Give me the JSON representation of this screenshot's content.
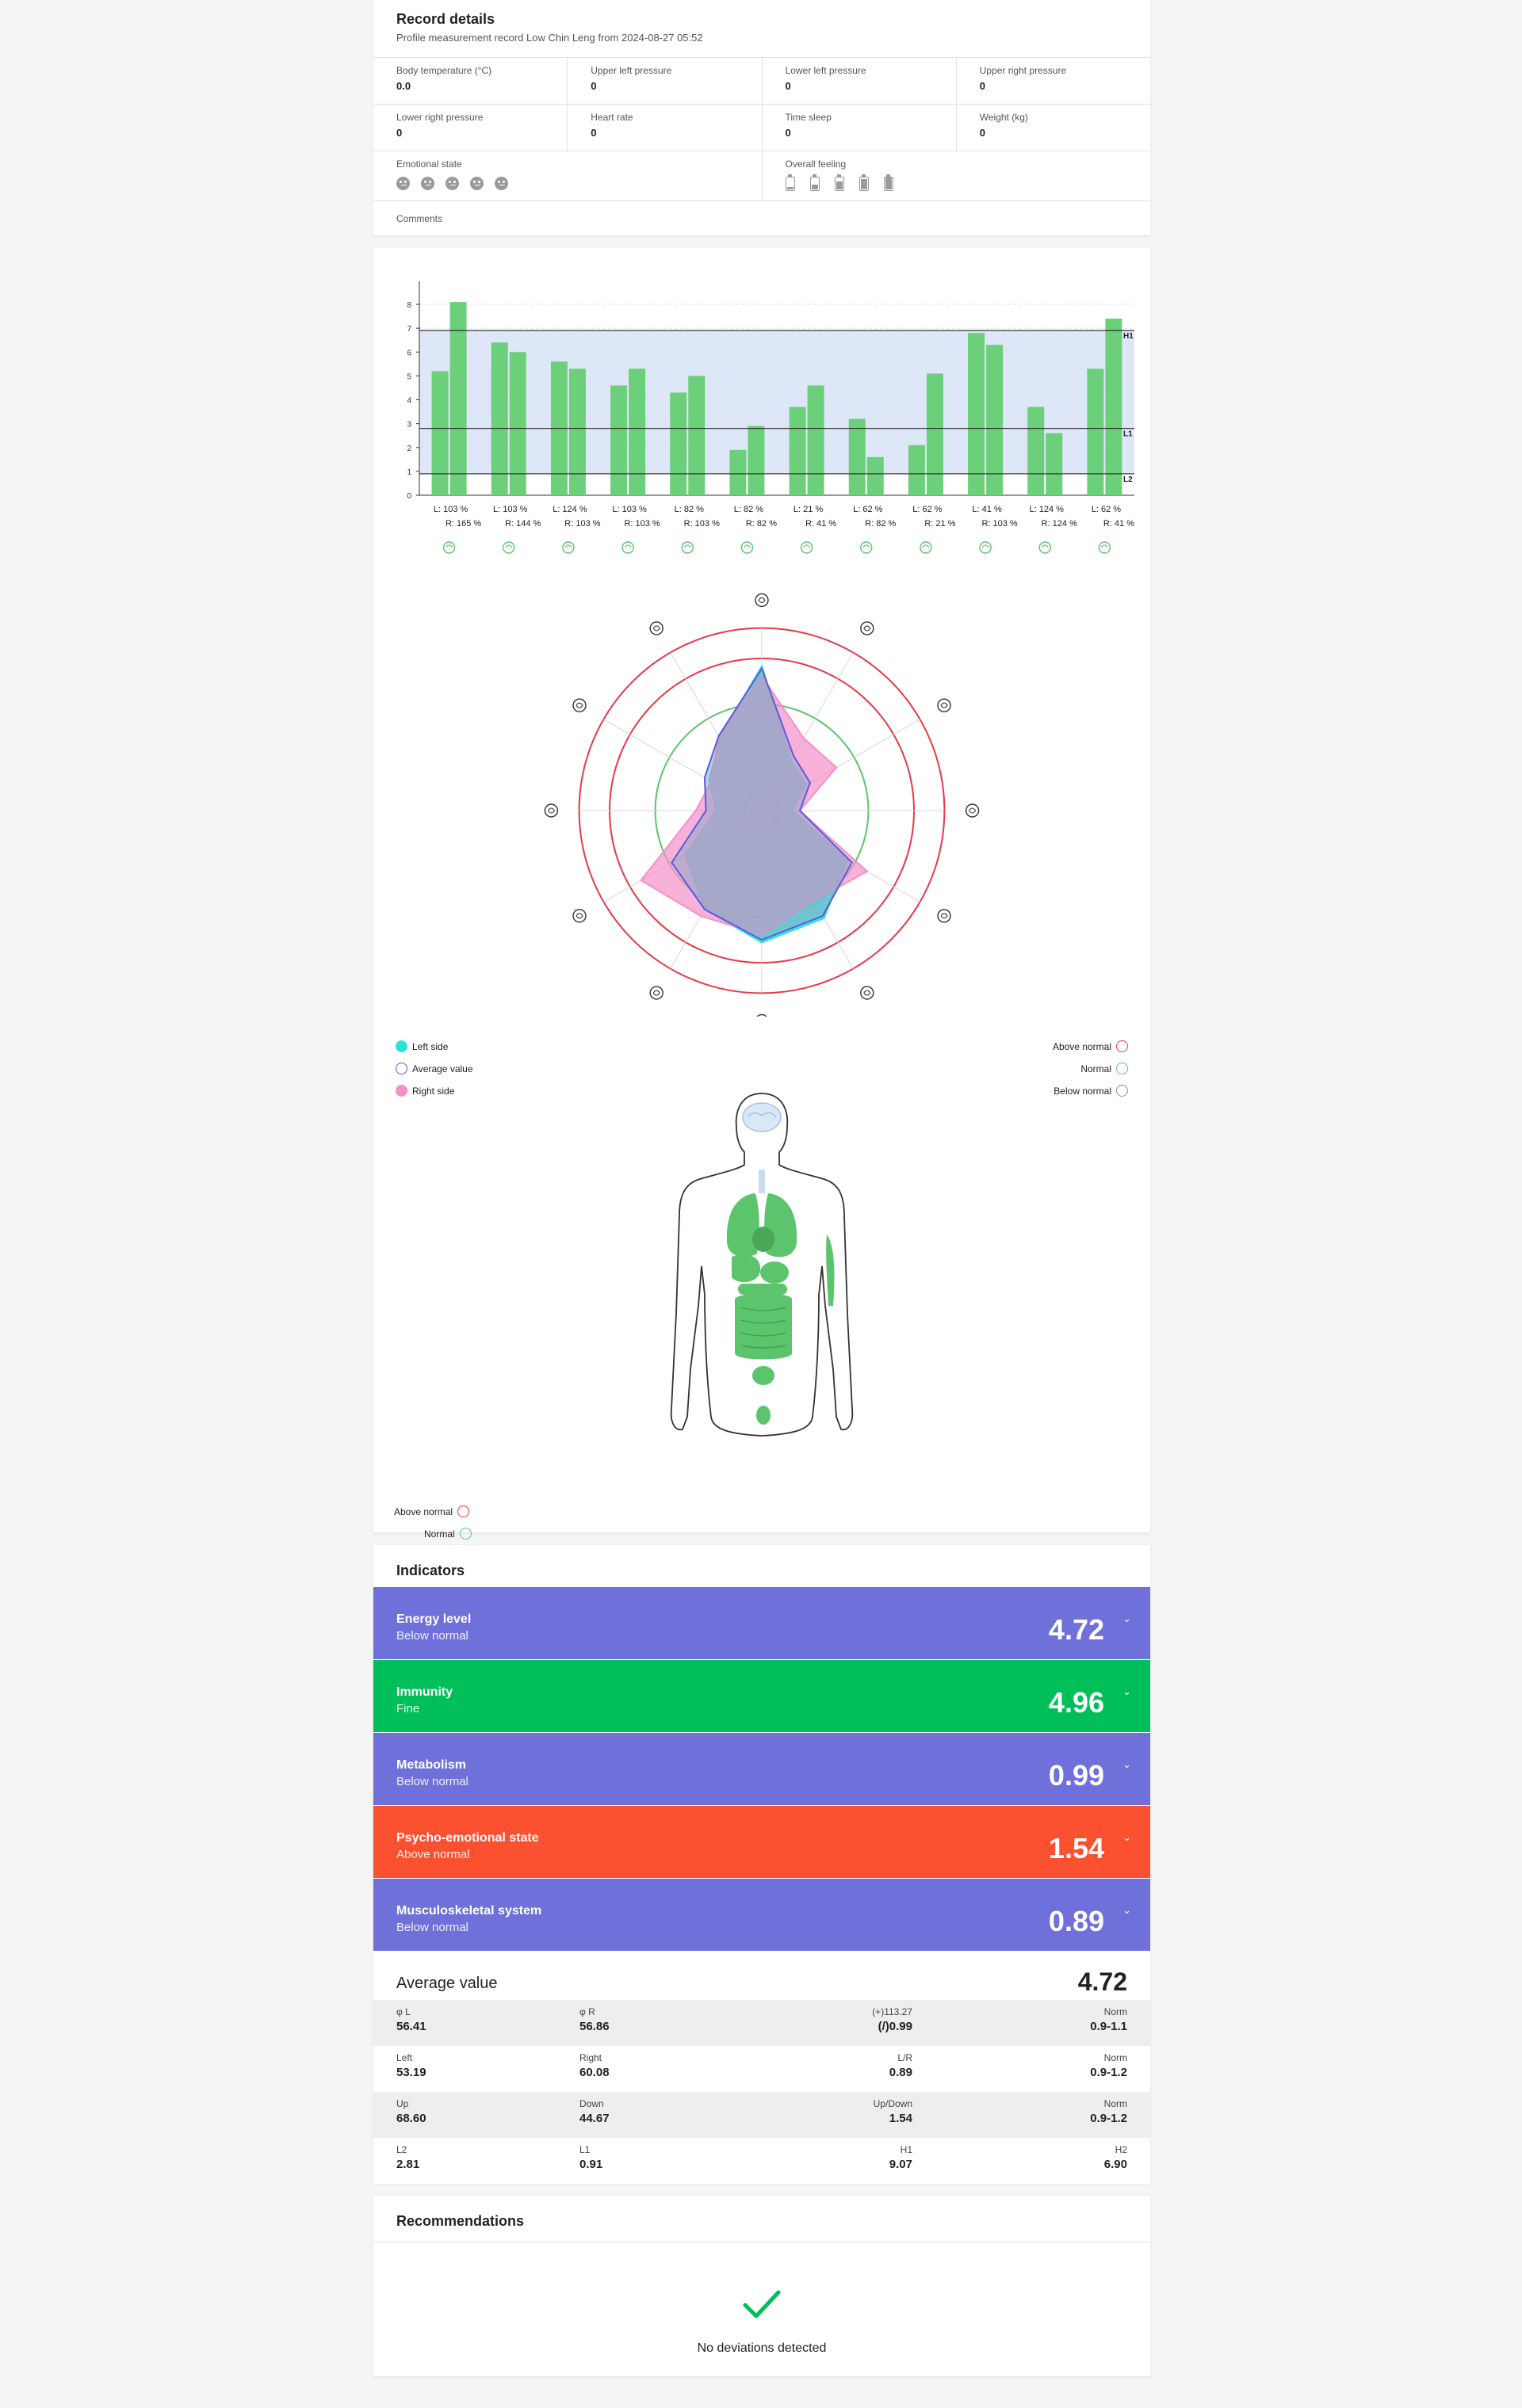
{
  "record": {
    "title": "Record details",
    "subtitle": "Profile measurement record Low Chin Leng from 2024-08-27 05:52",
    "fields_row1": [
      {
        "label": "Body temperature (°C)",
        "value": "0.0"
      },
      {
        "label": "Upper left pressure",
        "value": "0"
      },
      {
        "label": "Lower left pressure",
        "value": "0"
      },
      {
        "label": "Upper right pressure",
        "value": "0"
      }
    ],
    "fields_row2": [
      {
        "label": "Lower right pressure",
        "value": "0"
      },
      {
        "label": "Heart rate",
        "value": "0"
      },
      {
        "label": "Time sleep",
        "value": "0"
      },
      {
        "label": "Weight (kg)",
        "value": "0"
      }
    ],
    "emotional_label": "Emotional state",
    "feeling_label": "Overall feeling",
    "comments_label": "Comments"
  },
  "chart_data": [
    {
      "type": "bar",
      "y_ticks": [
        "0",
        "1",
        "2",
        "3",
        "4",
        "5",
        "6",
        "7",
        "8"
      ],
      "ylim": [
        0,
        8.7
      ],
      "thresholds": [
        {
          "name": "H1",
          "value": 6.9
        },
        {
          "name": "L1",
          "value": 2.8
        },
        {
          "name": "L2",
          "value": 0.9
        }
      ],
      "normal_band": [
        0.9,
        6.9
      ],
      "left_values": [
        5.2,
        6.4,
        5.6,
        4.6,
        4.3,
        1.9,
        3.7,
        3.2,
        2.1,
        6.8,
        3.7,
        5.3
      ],
      "right_values": [
        8.1,
        6.0,
        5.3,
        5.3,
        5.0,
        2.9,
        4.6,
        1.6,
        5.1,
        6.3,
        2.6,
        7.4
      ],
      "labels_left": [
        "L: 103 %",
        "L: 103 %",
        "L: 124 %",
        "L: 103 %",
        "L: 82 %",
        "L: 82 %",
        "L: 21 %",
        "L: 62 %",
        "L: 62 %",
        "L: 41 %",
        "L: 124 %",
        "L: 62 %"
      ],
      "labels_right": [
        "R: 165 %",
        "R: 144 %",
        "R: 103 %",
        "R: 103 %",
        "R: 103 %",
        "R: 82 %",
        "R: 41 %",
        "R: 82 %",
        "R: 21 %",
        "R: 103 %",
        "R: 124 %",
        "R: 41 %"
      ],
      "organ_icons": [
        "lungs-icon",
        "heart-icon",
        "pancreas-icon",
        "intestine-icon",
        "pericardium-icon",
        "kidney-icon",
        "sanjiao-icon",
        "spleen-icon",
        "bladder-icon",
        "stomach-icon",
        "liver-icon",
        "gallbladder-icon"
      ],
      "colors": {
        "bars": "#6ccf7a",
        "band": "#dde7f8"
      }
    },
    {
      "type": "radar",
      "axes_icons": [
        "heart-top-icon",
        "intestine-icon",
        "bladder-icon",
        "kidneys-icon",
        "heart-rate-icon",
        "shield-icon",
        "liver-icon",
        "stomach-icon",
        "lungs-icon",
        "ear-icon",
        "gallbladder-icon",
        "wand-icon"
      ],
      "left_side": [
        5.7,
        2.3,
        2.0,
        1.2,
        3.9,
        4.9,
        5.2,
        4.5,
        3.5,
        1.8,
        2.4,
        3.3
      ],
      "average": [
        5.6,
        2.5,
        2.2,
        1.5,
        4.1,
        4.8,
        5.1,
        4.5,
        4.1,
        2.2,
        2.6,
        3.4
      ],
      "right_side": [
        5.3,
        3.3,
        3.4,
        1.5,
        4.8,
        4.1,
        4.9,
        4.8,
        5.5,
        2.6,
        2.3,
        3.4
      ],
      "rings": {
        "below_normal": 1.0,
        "normal": 4.2,
        "above_normal_inner": 6.0,
        "above_normal_outer": 7.2
      },
      "colors": {
        "left": "#29e3d8",
        "average": "#5a5ae0",
        "right": "#f590c8",
        "above": "#e63946",
        "normal": "#5cc46c",
        "below": "#7a8fd8"
      }
    }
  ],
  "legend_left": [
    {
      "label": "Left side",
      "color": "#29e3d8"
    },
    {
      "label": "Average value",
      "color": "#5a5ae0"
    },
    {
      "label": "Right side",
      "color": "#f590c8"
    }
  ],
  "legend_right": [
    {
      "label": "Above normal",
      "color": "#e63946"
    },
    {
      "label": "Normal",
      "color": "#5cc46c"
    },
    {
      "label": "Below normal",
      "color": "#7a8fd8"
    }
  ],
  "indicators": {
    "title": "Indicators",
    "items": [
      {
        "name": "Energy level",
        "state": "Below normal",
        "value": "4.72",
        "color": "#6f70d9"
      },
      {
        "name": "Immunity",
        "state": "Fine",
        "value": "4.96",
        "color": "#00bf59"
      },
      {
        "name": "Metabolism",
        "state": "Below normal",
        "value": "0.99",
        "color": "#6f70d9"
      },
      {
        "name": "Psycho-emotional state",
        "state": "Above normal",
        "value": "1.54",
        "color": "#fc5130"
      },
      {
        "name": "Musculoskeletal system",
        "state": "Below normal",
        "value": "0.89",
        "color": "#6f70d9"
      }
    ],
    "average_label": "Average value",
    "average_value": "4.72",
    "stats": [
      [
        {
          "l": "φ L",
          "v": "56.41"
        },
        {
          "l": "φ R",
          "v": "56.86"
        },
        {
          "l": "(+)113.27",
          "v": "(/)0.99"
        },
        {
          "l": "Norm",
          "v": "0.9-1.1"
        }
      ],
      [
        {
          "l": "Left",
          "v": "53.19"
        },
        {
          "l": "Right",
          "v": "60.08"
        },
        {
          "l": "L/R",
          "v": "0.89"
        },
        {
          "l": "Norm",
          "v": "0.9-1.2"
        }
      ],
      [
        {
          "l": "Up",
          "v": "68.60"
        },
        {
          "l": "Down",
          "v": "44.67"
        },
        {
          "l": "Up/Down",
          "v": "1.54"
        },
        {
          "l": "Norm",
          "v": "0.9-1.2"
        }
      ],
      [
        {
          "l": "L2",
          "v": "2.81"
        },
        {
          "l": "L1",
          "v": "0.91"
        },
        {
          "l": "H1",
          "v": "9.07"
        },
        {
          "l": "H2",
          "v": "6.90"
        }
      ]
    ]
  },
  "recommendations": {
    "title": "Recommendations",
    "message": "No deviations detected"
  }
}
